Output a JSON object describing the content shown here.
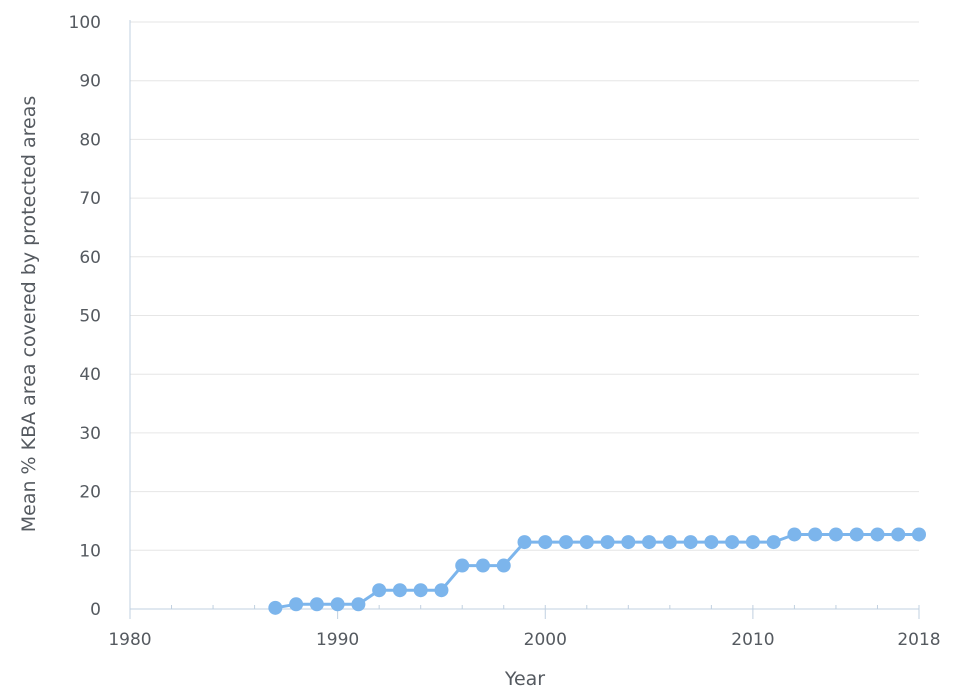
{
  "chart_data": {
    "type": "line",
    "title": "",
    "xlabel": "Year",
    "ylabel": "Mean % KBA area covered by protected areas",
    "xlim": [
      1980,
      2018
    ],
    "ylim": [
      0,
      100
    ],
    "x_ticks": [
      "1980",
      "1990",
      "2000",
      "2010",
      "2018"
    ],
    "y_ticks": [
      "0",
      "10",
      "20",
      "30",
      "40",
      "50",
      "60",
      "70",
      "80",
      "90",
      "100"
    ],
    "grid": "horizontal",
    "legend": "none",
    "series": [
      {
        "color": "#7cb5ec",
        "x": [
          1987,
          1988,
          1989,
          1990,
          1991,
          1992,
          1993,
          1994,
          1995,
          1996,
          1997,
          1998,
          1999,
          2000,
          2001,
          2002,
          2003,
          2004,
          2005,
          2006,
          2007,
          2008,
          2009,
          2010,
          2011,
          2012,
          2013,
          2014,
          2015,
          2016,
          2017,
          2018
        ],
        "y": [
          0.2,
          0.8,
          0.8,
          0.8,
          0.8,
          3.2,
          3.2,
          3.2,
          3.2,
          7.4,
          7.4,
          7.4,
          11.4,
          11.4,
          11.4,
          11.4,
          11.4,
          11.4,
          11.4,
          11.4,
          11.4,
          11.4,
          11.4,
          11.4,
          11.4,
          12.7,
          12.7,
          12.7,
          12.7,
          12.7,
          12.7,
          12.7
        ]
      }
    ]
  }
}
